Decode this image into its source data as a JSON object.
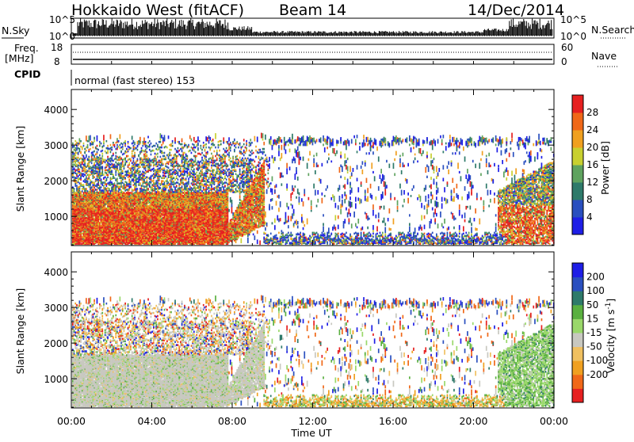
{
  "header": {
    "station": "Hokkaido West (fitACF)",
    "beam": "Beam 14",
    "date": "14/Dec/2014"
  },
  "aux_panels": {
    "nsky_label": "N.Sky",
    "nsearch_label": "N.Search",
    "noise_tick_top": "10^5",
    "noise_tick_bottom": "10^0",
    "freq_label_line1": "Freq.",
    "freq_label_line2": "[MHz]",
    "freq_tick_top": "18",
    "freq_tick_bottom": "8",
    "nave_label": "Nave",
    "nave_tick_top": "60",
    "nave_tick_bottom": "0",
    "cpid_label": "CPID",
    "cpid_text": "normal (fast stereo) 153"
  },
  "colors": {
    "power_scale": [
      "#1e1ee6",
      "#2a4fbf",
      "#2e7a6a",
      "#5fa35f",
      "#c8d030",
      "#f0a020",
      "#f06818",
      "#e62020"
    ],
    "velocity_scale": [
      "#e62020",
      "#f06818",
      "#f0a020",
      "#f0c060",
      "#c8c8c0",
      "#9ad86a",
      "#5ab040",
      "#2e7a6a",
      "#2a4fbf",
      "#1e1ee6"
    ]
  },
  "chart_data": [
    {
      "type": "heatmap",
      "title": "",
      "xlabel": "Time UT",
      "ylabel": "Slant Range [km]",
      "x_ticks": [
        "00:00",
        "04:00",
        "08:00",
        "12:00",
        "16:00",
        "20:00",
        "00:00"
      ],
      "y_ticks": [
        "1000",
        "2000",
        "3000",
        "4000"
      ],
      "ylim": [
        180,
        4560
      ],
      "colorbar": {
        "label": "Power [dB]",
        "ticks": [
          "4",
          "8",
          "12",
          "16",
          "20",
          "24",
          "28"
        ],
        "range": [
          0,
          32
        ]
      }
    },
    {
      "type": "heatmap",
      "title": "",
      "xlabel": "Time UT",
      "ylabel": "Slant Range [km]",
      "x_ticks": [
        "00:00",
        "04:00",
        "08:00",
        "12:00",
        "16:00",
        "20:00",
        "00:00"
      ],
      "y_ticks": [
        "1000",
        "2000",
        "3000",
        "4000"
      ],
      "ylim": [
        180,
        4560
      ],
      "colorbar": {
        "label": "Velocity [m s^-1]",
        "ticks": [
          "200",
          "100",
          "50",
          "15",
          "-15",
          "-50",
          "-100",
          "-200"
        ]
      }
    }
  ]
}
